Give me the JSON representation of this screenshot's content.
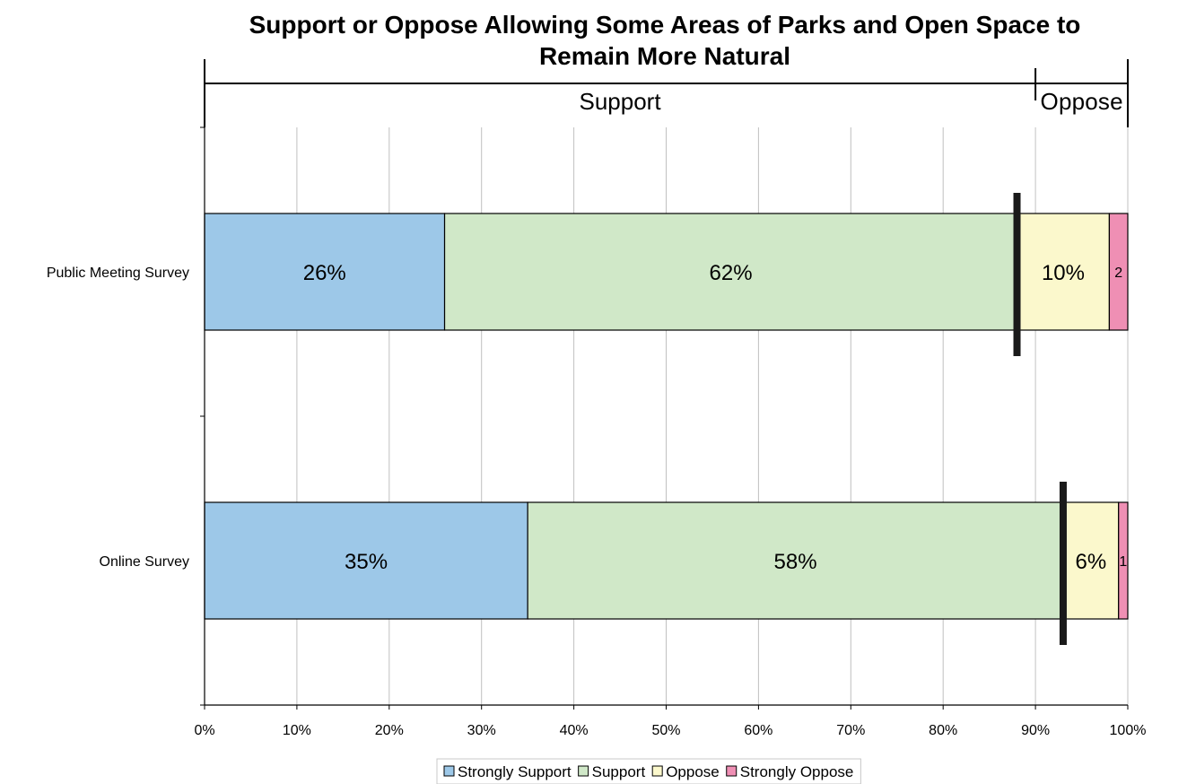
{
  "chart_data": {
    "type": "bar",
    "orientation": "horizontal",
    "stacked": true,
    "title": "Support or Oppose Allowing Some Areas of Parks and Open Space to Remain More Natural",
    "categories": [
      "Public Meeting Survey",
      "Online Survey"
    ],
    "series": [
      {
        "name": "Strongly Support",
        "color": "#9dc8e8",
        "values": [
          26,
          35
        ],
        "labels": [
          "26%",
          "35%"
        ]
      },
      {
        "name": "Support",
        "color": "#d0e8c8",
        "values": [
          62,
          58
        ],
        "labels": [
          "62%",
          "58%"
        ]
      },
      {
        "name": "Oppose",
        "color": "#fbf8cc",
        "values": [
          10,
          6
        ],
        "labels": [
          "10%",
          "6%"
        ]
      },
      {
        "name": "Strongly Oppose",
        "color": "#ef8fb4",
        "values": [
          2,
          1
        ],
        "labels": [
          "2",
          "1"
        ]
      }
    ],
    "dividers": [
      88,
      93
    ],
    "brackets": [
      {
        "label": "Support",
        "from": 0,
        "to": 90
      },
      {
        "label": "Oppose",
        "from": 90,
        "to": 100
      }
    ],
    "xlim": [
      0,
      100
    ],
    "xticks": [
      "0%",
      "10%",
      "20%",
      "30%",
      "40%",
      "50%",
      "60%",
      "70%",
      "80%",
      "90%",
      "100%"
    ],
    "grid": true,
    "legend_position": "bottom"
  }
}
